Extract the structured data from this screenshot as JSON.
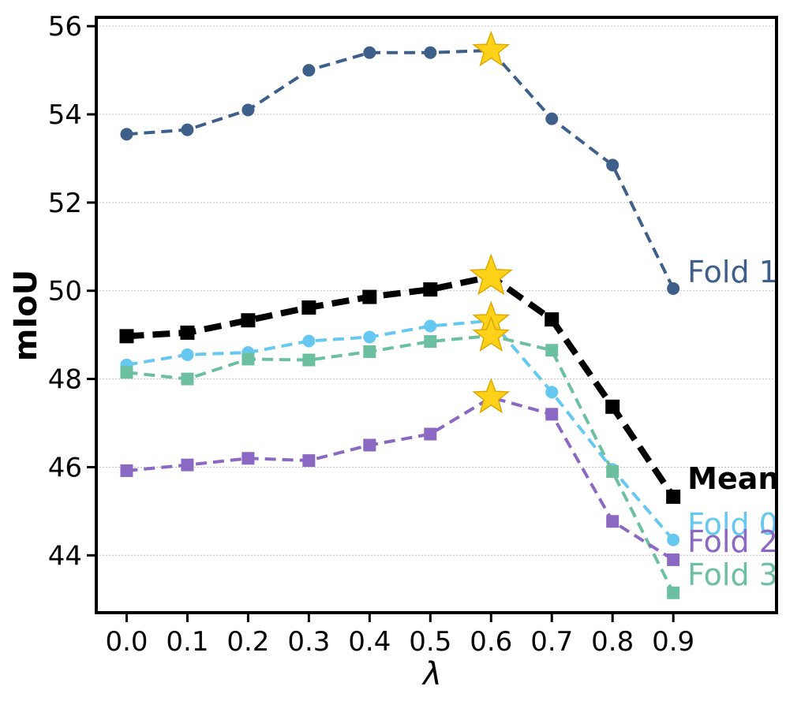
{
  "chart_data": {
    "type": "line",
    "xlabel": "λ",
    "ylabel": "mIoU",
    "x": [
      0.0,
      0.1,
      0.2,
      0.3,
      0.4,
      0.5,
      0.6,
      0.7,
      0.8,
      0.9
    ],
    "x_tick_labels": [
      "0.0",
      "0.1",
      "0.2",
      "0.3",
      "0.4",
      "0.5",
      "0.6",
      "0.7",
      "0.8",
      "0.9"
    ],
    "xlim": [
      -0.05,
      1.07
    ],
    "ylim": [
      42.7,
      56.2
    ],
    "y_ticks": [
      44,
      46,
      48,
      50,
      52,
      54,
      56
    ],
    "y_tick_labels": [
      "44",
      "46",
      "48",
      "50",
      "52",
      "54",
      "56"
    ],
    "grid": "horizontal dotted",
    "best_marker": "star at x = 0.6",
    "series": [
      {
        "name": "Fold 1",
        "label": "Fold 1",
        "color": "#3d5f8a",
        "marker": "circle",
        "dashed": true,
        "bold": false,
        "values": [
          53.55,
          53.65,
          54.1,
          55.0,
          55.4,
          55.4,
          55.45,
          53.9,
          52.85,
          50.05
        ]
      },
      {
        "name": "Mean",
        "label": "Mean",
        "color": "#000000",
        "marker": "square",
        "dashed": true,
        "bold": true,
        "values": [
          48.97,
          49.05,
          49.33,
          49.62,
          49.86,
          50.03,
          50.32,
          49.35,
          47.37,
          45.33
        ]
      },
      {
        "name": "Fold 0",
        "label": "Fold 0",
        "color": "#66c8f0",
        "marker": "circle",
        "dashed": true,
        "bold": false,
        "values": [
          48.32,
          48.55,
          48.6,
          48.86,
          48.95,
          49.2,
          49.32,
          47.7,
          45.95,
          44.35
        ]
      },
      {
        "name": "Fold 3",
        "label": "Fold 3",
        "color": "#6cc0a0",
        "marker": "square",
        "dashed": true,
        "bold": false,
        "values": [
          48.15,
          48.0,
          48.45,
          48.43,
          48.62,
          48.85,
          48.98,
          48.65,
          45.9,
          43.15
        ]
      },
      {
        "name": "Fold 2",
        "label": "Fold 2",
        "color": "#8b68c2",
        "marker": "square",
        "dashed": true,
        "bold": false,
        "values": [
          45.92,
          46.05,
          46.2,
          46.15,
          46.5,
          46.75,
          47.58,
          47.2,
          44.77,
          43.9
        ]
      }
    ]
  }
}
